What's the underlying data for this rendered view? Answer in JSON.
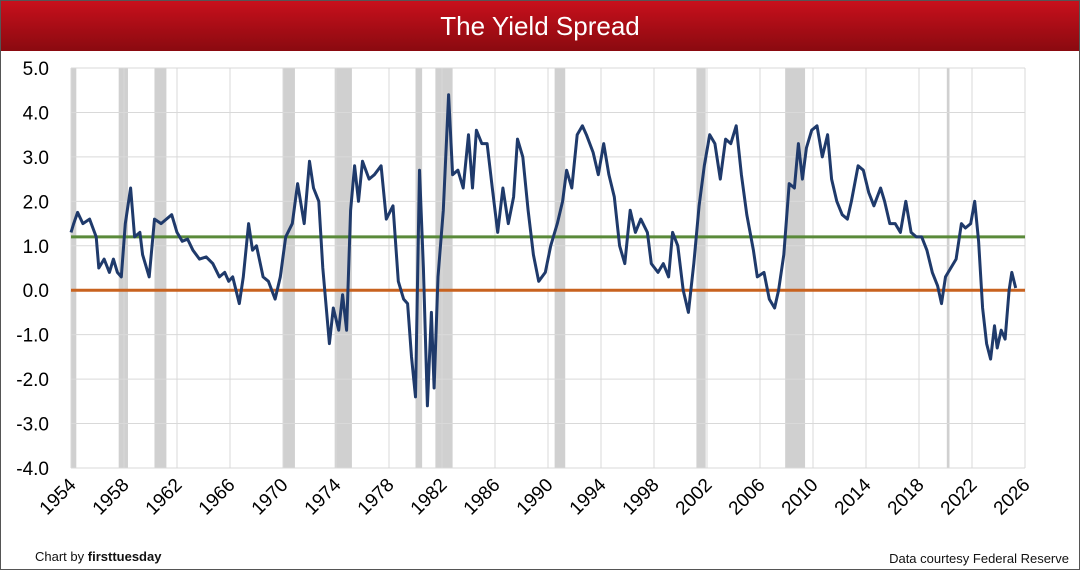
{
  "chart_data": {
    "type": "line",
    "title": "The Yield Spread",
    "xlim": [
      1954,
      2026
    ],
    "xticks": [
      1954,
      1958,
      1962,
      1966,
      1970,
      1974,
      1978,
      1982,
      1986,
      1990,
      1994,
      1998,
      2002,
      2006,
      2010,
      2014,
      2018,
      2022,
      2026
    ],
    "ylim": [
      -4,
      5
    ],
    "yticks": [
      {
        "value": 5,
        "label": "5.0"
      },
      {
        "value": 4,
        "label": "4.0"
      },
      {
        "value": 3,
        "label": "3.0"
      },
      {
        "value": 2,
        "label": "2.0"
      },
      {
        "value": 1,
        "label": "1.0"
      },
      {
        "value": 0,
        "label": "0.0"
      },
      {
        "value": -1,
        "label": "-1.0"
      },
      {
        "value": -2,
        "label": "-2.0"
      },
      {
        "value": -3,
        "label": "-3.0"
      },
      {
        "value": -4,
        "label": "-4.0"
      }
    ],
    "grid": true,
    "shaded_periods": [
      [
        1954.0,
        1954.4
      ],
      [
        1957.6,
        1958.3
      ],
      [
        1960.3,
        1961.2
      ],
      [
        1970.0,
        1970.9
      ],
      [
        1973.9,
        1975.2
      ],
      [
        1980.0,
        1980.5
      ],
      [
        1981.5,
        1982.8
      ],
      [
        1990.5,
        1991.3
      ],
      [
        2001.2,
        2001.9
      ],
      [
        2007.9,
        2009.4
      ],
      [
        2020.1,
        2020.3
      ]
    ],
    "shade_color": "#d0d0d0",
    "reference_lines": [
      {
        "value": 1.2,
        "color": "#5a8a3a"
      },
      {
        "value": 0,
        "color": "#c8621f"
      }
    ],
    "series": [
      {
        "color": "#1f3a6b",
        "x": [
          1954.0,
          1954.2,
          1954.5,
          1954.9,
          1955.4,
          1955.9,
          1956.1,
          1956.5,
          1956.9,
          1957.2,
          1957.5,
          1957.8,
          1958.1,
          1958.5,
          1958.8,
          1959.2,
          1959.4,
          1959.9,
          1960.3,
          1960.8,
          1961.2,
          1961.6,
          1962.0,
          1962.4,
          1962.8,
          1963.2,
          1963.7,
          1964.2,
          1964.7,
          1965.2,
          1965.6,
          1965.9,
          1966.2,
          1966.7,
          1967.0,
          1967.4,
          1967.7,
          1968.0,
          1968.5,
          1968.9,
          1969.4,
          1969.8,
          1970.2,
          1970.7,
          1971.1,
          1971.6,
          1972.0,
          1972.3,
          1972.7,
          1973.0,
          1973.5,
          1973.8,
          1974.2,
          1974.5,
          1974.8,
          1975.1,
          1975.4,
          1975.7,
          1976.0,
          1976.5,
          1976.9,
          1977.4,
          1977.8,
          1978.3,
          1978.7,
          1979.1,
          1979.4,
          1979.7,
          1980.0,
          1980.3,
          1980.6,
          1980.9,
          1981.2,
          1981.4,
          1981.7,
          1982.1,
          1982.5,
          1982.8,
          1983.2,
          1983.6,
          1984.0,
          1984.3,
          1984.6,
          1985.0,
          1985.4,
          1985.8,
          1986.2,
          1986.6,
          1987.0,
          1987.4,
          1987.7,
          1988.1,
          1988.5,
          1988.9,
          1989.3,
          1989.8,
          1990.2,
          1990.7,
          1991.1,
          1991.4,
          1991.8,
          1992.2,
          1992.6,
          1992.9,
          1993.4,
          1993.8,
          1994.2,
          1994.6,
          1995.0,
          1995.4,
          1995.8,
          1996.2,
          1996.6,
          1997.0,
          1997.5,
          1997.8,
          1998.3,
          1998.7,
          1999.1,
          1999.4,
          1999.8,
          2000.2,
          2000.6,
          2001.0,
          2001.4,
          2001.8,
          2002.2,
          2002.6,
          2003.0,
          2003.4,
          2003.8,
          2004.2,
          2004.6,
          2005.0,
          2005.5,
          2005.8,
          2006.3,
          2006.7,
          2007.1,
          2007.4,
          2007.8,
          2008.2,
          2008.6,
          2008.9,
          2009.2,
          2009.5,
          2009.9,
          2010.3,
          2010.7,
          2011.1,
          2011.4,
          2011.8,
          2012.2,
          2012.6,
          2012.9,
          2013.4,
          2013.8,
          2014.2,
          2014.6,
          2015.1,
          2015.4,
          2015.8,
          2016.2,
          2016.6,
          2017.0,
          2017.4,
          2017.8,
          2018.2,
          2018.6,
          2019.0,
          2019.4,
          2019.7,
          2020.0,
          2020.4,
          2020.8,
          2021.2,
          2021.5,
          2021.9,
          2022.2,
          2022.5,
          2022.8,
          2023.1,
          2023.4,
          2023.7,
          2023.9,
          2024.2,
          2024.5,
          2024.8,
          2025.0,
          2025.3
        ],
        "values": [
          1.3,
          1.5,
          1.75,
          1.5,
          1.6,
          1.2,
          0.5,
          0.7,
          0.4,
          0.7,
          0.4,
          0.3,
          1.5,
          2.3,
          1.2,
          1.3,
          0.8,
          0.3,
          1.6,
          1.5,
          1.6,
          1.7,
          1.3,
          1.1,
          1.15,
          0.9,
          0.7,
          0.75,
          0.6,
          0.3,
          0.4,
          0.2,
          0.3,
          -0.3,
          0.3,
          1.5,
          0.9,
          1.0,
          0.3,
          0.2,
          -0.2,
          0.3,
          1.2,
          1.5,
          2.4,
          1.5,
          2.9,
          2.3,
          2.0,
          0.5,
          -1.2,
          -0.4,
          -0.9,
          -0.1,
          -0.9,
          1.8,
          2.8,
          2.0,
          2.9,
          2.5,
          2.6,
          2.8,
          1.6,
          1.9,
          0.2,
          -0.2,
          -0.3,
          -1.5,
          -2.4,
          2.7,
          0.5,
          -2.6,
          -0.5,
          -2.2,
          0.3,
          1.8,
          4.4,
          2.6,
          2.7,
          2.3,
          3.5,
          2.3,
          3.6,
          3.3,
          3.3,
          2.3,
          1.3,
          2.3,
          1.5,
          2.1,
          3.4,
          3.0,
          1.8,
          0.8,
          0.2,
          0.4,
          1.0,
          1.5,
          2.0,
          2.7,
          2.3,
          3.5,
          3.7,
          3.5,
          3.1,
          2.6,
          3.3,
          2.6,
          2.1,
          1.0,
          0.6,
          1.8,
          1.3,
          1.6,
          1.3,
          0.6,
          0.4,
          0.6,
          0.3,
          1.3,
          1.0,
          0.0,
          -0.5,
          0.6,
          1.9,
          2.8,
          3.5,
          3.3,
          2.5,
          3.4,
          3.3,
          3.7,
          2.6,
          1.7,
          0.9,
          0.3,
          0.4,
          -0.2,
          -0.4,
          0.0,
          0.8,
          2.4,
          2.3,
          3.3,
          2.5,
          3.2,
          3.6,
          3.7,
          3.0,
          3.5,
          2.5,
          2.0,
          1.7,
          1.6,
          2.0,
          2.8,
          2.7,
          2.2,
          1.9,
          2.3,
          2.0,
          1.5,
          1.5,
          1.3,
          2.0,
          1.3,
          1.2,
          1.2,
          0.9,
          0.4,
          0.1,
          -0.3,
          0.3,
          0.5,
          0.7,
          1.5,
          1.4,
          1.5,
          2.0,
          1.1,
          -0.4,
          -1.2,
          -1.55,
          -0.8,
          -1.3,
          -0.9,
          -1.1,
          0.0,
          0.4,
          0.05
        ]
      }
    ]
  },
  "footer": {
    "credit_prefix": "Chart by",
    "credit_brand": "firsttuesday",
    "source": "Data courtesy Federal Reserve"
  }
}
